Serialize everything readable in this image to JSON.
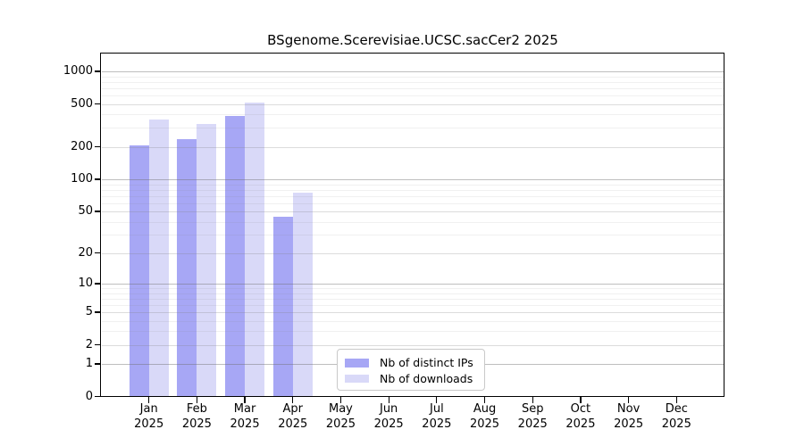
{
  "title": "BSgenome.Scerevisiae.UCSC.sacCer2 2025",
  "legend": {
    "items": [
      {
        "label": "Nb of distinct IPs",
        "color": "#a7a7f5"
      },
      {
        "label": "Nb of downloads",
        "color": "#d9d9f8"
      }
    ]
  },
  "chart_data": {
    "type": "bar",
    "title": "BSgenome.Scerevisiae.UCSC.sacCer2 2025",
    "y_scale": "log10(1+value)",
    "categories": [
      "Jan",
      "Feb",
      "Mar",
      "Apr",
      "May",
      "Jun",
      "Jul",
      "Aug",
      "Sep",
      "Oct",
      "Nov",
      "Dec"
    ],
    "x_sublabel": "2025",
    "series": [
      {
        "name": "Nb of distinct IPs",
        "color": "#a7a7f5",
        "values": [
          205,
          235,
          385,
          45,
          0,
          0,
          0,
          0,
          0,
          0,
          0,
          0
        ]
      },
      {
        "name": "Nb of downloads",
        "color": "#d9d9f8",
        "values": [
          360,
          325,
          510,
          75,
          0,
          0,
          0,
          0,
          0,
          0,
          0,
          0
        ]
      }
    ],
    "yticks": [
      0,
      1,
      2,
      5,
      10,
      20,
      50,
      100,
      200,
      500,
      1000
    ],
    "ylim": [
      0,
      1500
    ],
    "grid": "horizontal",
    "legend_position": "inside-bottom-center"
  },
  "colors": {
    "background": "#ffffff",
    "axis": "#000000",
    "bar_distinct_ips": "#a7a7f5",
    "bar_downloads": "#d9d9f8",
    "grid_major_rgba": "rgba(110,110,110,0.45)",
    "grid_mid_rgba": "rgba(128,128,128,0.28)",
    "grid_minor_rgba": "rgba(128,128,128,0.12)",
    "legend_border": "#c9c9c9"
  }
}
